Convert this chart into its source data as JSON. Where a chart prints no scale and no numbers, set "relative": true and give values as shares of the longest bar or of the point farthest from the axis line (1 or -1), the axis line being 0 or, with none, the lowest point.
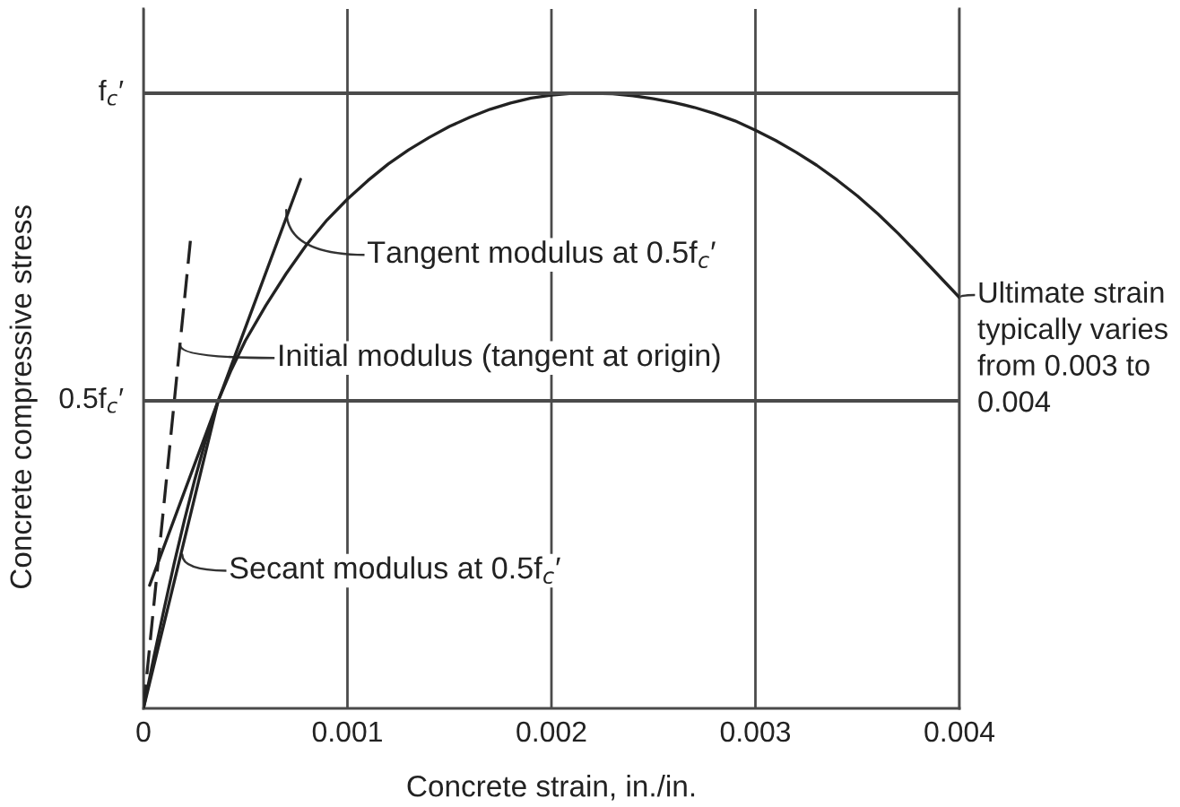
{
  "chart_data": {
    "type": "line",
    "relative": true,
    "xlabel": "Concrete strain, in./in.",
    "ylabel": "Concrete compressive stress",
    "xlim": [
      0,
      0.004
    ],
    "xticks": [
      0,
      0.001,
      0.002,
      0.003,
      0.004
    ],
    "grid": "x",
    "ref_lines": [
      {
        "axis": "y",
        "value": 0.5,
        "label": "0.5f$_{c}$′",
        "color": "#4a4a4a"
      },
      {
        "axis": "y",
        "value": 1,
        "label": "f$_{c}$′",
        "color": "#4a4a4a"
      }
    ],
    "series": [
      {
        "color": "#222222",
        "x": [
          0,
          5e-05,
          0.0001,
          0.00015,
          0.0002,
          0.00025,
          0.0003,
          0.000366,
          0.00043,
          0.0005,
          0.0006,
          0.0007,
          0.0008,
          0.0009,
          0.001,
          0.0011,
          0.0012,
          0.0013,
          0.0014,
          0.0015,
          0.0016,
          0.0017,
          0.0018,
          0.0019,
          0.002,
          0.0021,
          0.0022,
          0.0023,
          0.0024,
          0.0025,
          0.0026,
          0.0027,
          0.0028,
          0.0029,
          0.003,
          0.0031,
          0.0032,
          0.0033,
          0.0034,
          0.0035,
          0.0036,
          0.0037,
          0.0038,
          0.0039,
          0.004
        ],
        "values": [
          0,
          0.082,
          0.16,
          0.235,
          0.305,
          0.37,
          0.43,
          0.5,
          0.55,
          0.598,
          0.655,
          0.707,
          0.754,
          0.794,
          0.828,
          0.858,
          0.885,
          0.908,
          0.928,
          0.946,
          0.961,
          0.974,
          0.984,
          0.992,
          0.997,
          1.0,
          1.0,
          0.999,
          0.996,
          0.991,
          0.985,
          0.977,
          0.967,
          0.955,
          0.94,
          0.923,
          0.904,
          0.883,
          0.859,
          0.833,
          0.804,
          0.772,
          0.738,
          0.703,
          0.668
        ]
      },
      {
        "color": "#222222",
        "x": [
          3e-05,
          0.00077
        ],
        "values": [
          0.2,
          0.86
        ]
      },
      {
        "color": "#222222",
        "line_style": "dashed",
        "x": [
          0,
          0.00023
        ],
        "values": [
          0,
          0.76
        ]
      },
      {
        "color": "#222222",
        "x": [
          0,
          0.000366
        ],
        "values": [
          0,
          0.5
        ]
      }
    ],
    "annotations": [
      {
        "text": "Tangent modulus at 0.5f$_{c}$′",
        "x": 0.0007,
        "y": 0.81
      },
      {
        "text": "Initial modulus (tangent at origin)",
        "x": 0.00018,
        "y": 0.59
      },
      {
        "text": "Secant modulus at 0.5f$_{c}$′",
        "x": 0.00019,
        "y": 0.25
      },
      {
        "text": "Ultimate strain typically varies from 0.003 to 0.004",
        "x": 0.004,
        "y": 0.668
      }
    ]
  }
}
